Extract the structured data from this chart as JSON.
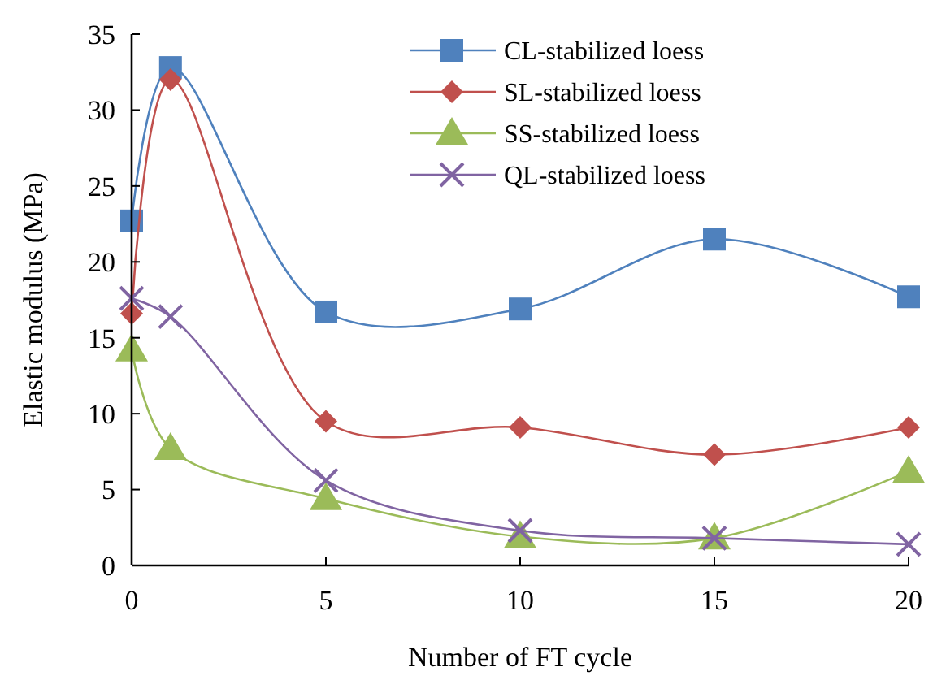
{
  "chart_data": {
    "type": "line",
    "xlabel": "Number of FT cycle",
    "ylabel": "Elastic modulus  (MPa)",
    "x": [
      0,
      1,
      5,
      10,
      15,
      20
    ],
    "xlim": [
      0,
      20
    ],
    "xticks": [
      0,
      5,
      10,
      15,
      20
    ],
    "ylim": [
      0,
      35
    ],
    "yticks": [
      0,
      5,
      10,
      15,
      20,
      25,
      30,
      35
    ],
    "grid": false,
    "legend": "top right",
    "series": [
      {
        "name": "CL-stabilized loess",
        "color": "#4f81bd",
        "marker": "square",
        "values": [
          22.7,
          32.8,
          16.7,
          16.9,
          21.5,
          17.7
        ]
      },
      {
        "name": "SL-stabilized loess",
        "color": "#c0504d",
        "marker": "diamond",
        "values": [
          16.6,
          32.0,
          9.5,
          9.1,
          7.3,
          9.1
        ]
      },
      {
        "name": "SS-stabilized loess",
        "color": "#9bbb59",
        "marker": "triangle",
        "values": [
          14.2,
          7.7,
          4.4,
          1.9,
          1.8,
          6.2
        ]
      },
      {
        "name": "QL-stabilized loess",
        "color": "#8064a2",
        "marker": "cross",
        "values": [
          17.6,
          16.4,
          5.6,
          2.3,
          1.8,
          1.4
        ]
      }
    ]
  }
}
